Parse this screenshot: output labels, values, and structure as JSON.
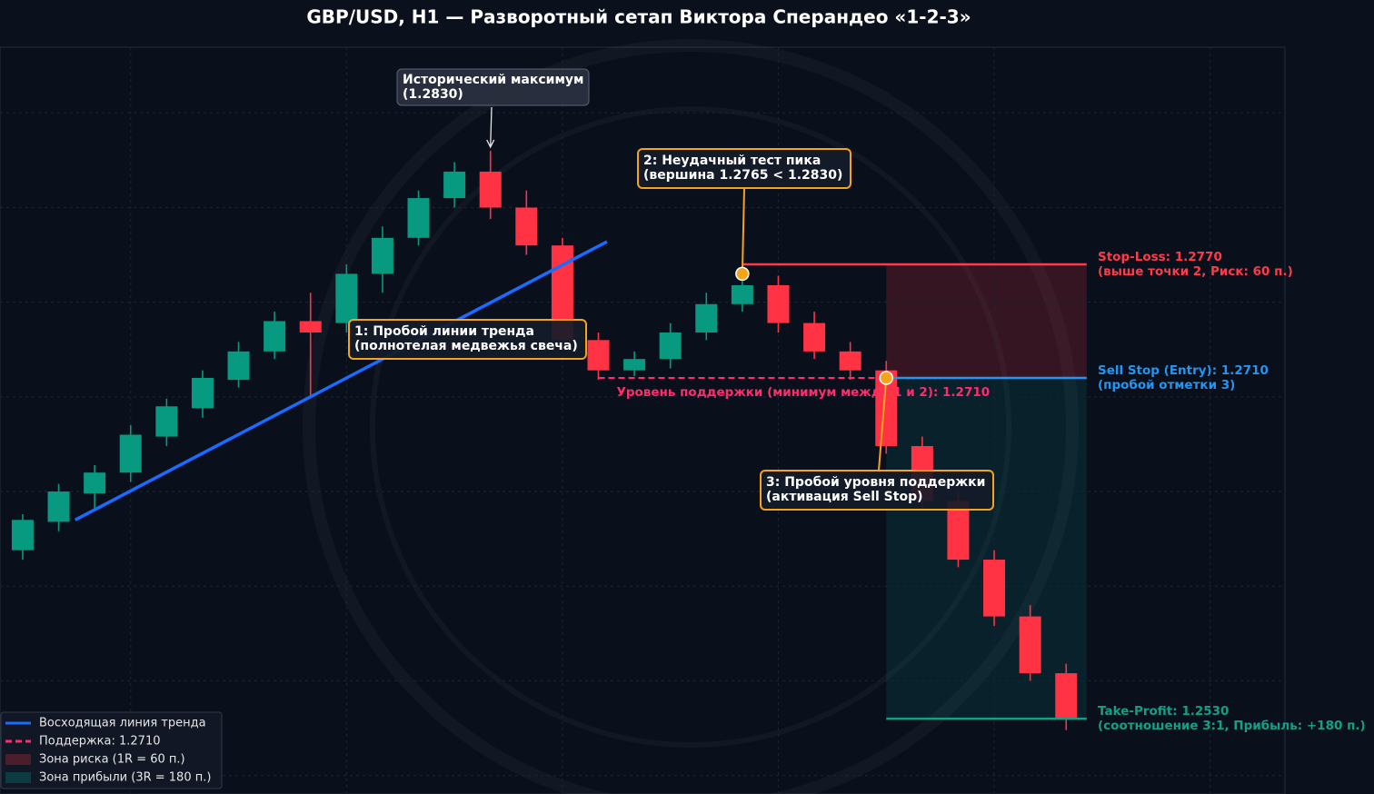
{
  "chart_data": {
    "type": "candlestick",
    "title": "GBP/USD, H1 — Разворотный сетап Виктора Сперандео «1-2-3»",
    "xlim": [
      -0.63,
      35.08
    ],
    "ylim": [
      1.24902,
      1.28847
    ],
    "xticks": [
      3,
      9,
      15,
      21,
      27,
      33
    ],
    "yticks": [
      1.25,
      1.255,
      1.26,
      1.265,
      1.27,
      1.275,
      1.28,
      1.285
    ],
    "grid": true,
    "tick_labels": false,
    "legend": "lower left",
    "up_color": "#089981",
    "down_color": "#ff3344",
    "open": [
      1.2619,
      1.2634,
      1.2649,
      1.266,
      1.2679,
      1.2694,
      1.2709,
      1.2724,
      1.274,
      1.2739,
      1.2765,
      1.2784,
      1.2805,
      1.2819,
      1.28,
      1.278,
      1.273,
      1.2714,
      1.272,
      1.2734,
      1.2749,
      1.2759,
      1.2739,
      1.2724,
      1.2714,
      1.2674,
      1.2645,
      1.2614,
      1.2584,
      1.2554
    ],
    "high": [
      1.2638,
      1.2654,
      1.2664,
      1.2685,
      1.2699,
      1.2714,
      1.2729,
      1.2745,
      1.2755,
      1.277,
      1.279,
      1.2809,
      1.2824,
      1.283,
      1.2809,
      1.2784,
      1.2734,
      1.2724,
      1.2739,
      1.2755,
      1.2765,
      1.2764,
      1.2745,
      1.2729,
      1.2719,
      1.2679,
      1.265,
      1.2619,
      1.259,
      1.2559
    ],
    "low": [
      1.2614,
      1.2629,
      1.2641,
      1.2655,
      1.2674,
      1.2689,
      1.2705,
      1.272,
      1.27,
      1.2734,
      1.2755,
      1.278,
      1.28,
      1.2794,
      1.2775,
      1.2725,
      1.2709,
      1.2711,
      1.2715,
      1.273,
      1.2745,
      1.2734,
      1.272,
      1.2709,
      1.267,
      1.264,
      1.261,
      1.2579,
      1.255,
      1.2524
    ],
    "close": [
      1.2635,
      1.265,
      1.266,
      1.268,
      1.2695,
      1.271,
      1.2724,
      1.274,
      1.2734,
      1.2765,
      1.2784,
      1.2805,
      1.2819,
      1.28,
      1.278,
      1.273,
      1.2714,
      1.272,
      1.2734,
      1.2749,
      1.2759,
      1.2739,
      1.2724,
      1.2714,
      1.2674,
      1.2645,
      1.2614,
      1.2584,
      1.2554,
      1.253
    ],
    "trendline": {
      "name": "Восходящая линия тренда",
      "color": "#1a6bff",
      "x": [
        1.46,
        16.24
      ],
      "y": [
        1.2635,
        1.2782
      ]
    },
    "zones": [
      {
        "name": "Зона риска (1R = 60 п.)",
        "from": 1.271,
        "to": 1.277,
        "x": [
          24,
          29.57
        ],
        "color": "#ff3344"
      },
      {
        "name": "Зона прибыли (3R = 180 п.)",
        "from": 1.253,
        "to": 1.271,
        "x": [
          24,
          29.57
        ],
        "color": "#00a896"
      }
    ],
    "levels": [
      {
        "name": "Поддержка: 1.2710",
        "label": [
          "Уровень поддержки (минимум между 1 и 2): 1.2710"
        ],
        "value": 1.271,
        "x": [
          16,
          24
        ],
        "color": "#ff2d6b",
        "dash": true
      },
      {
        "label": [
          "Stop-Loss: 1.2770",
          "(выше точки 2, Риск: 60 п.)"
        ],
        "value": 1.277,
        "x": [
          20,
          29.57
        ],
        "color": "#ff3b4a",
        "dash": false
      },
      {
        "label": [
          "Sell Stop (Entry): 1.2710",
          "(пробой отметки 3)"
        ],
        "value": 1.271,
        "x": [
          24,
          29.57
        ],
        "color": "#2196f3",
        "dash": false
      },
      {
        "label": [
          "Take-Profit: 1.2530",
          "(соотношение 3:1, Прибыль: +180 п.)"
        ],
        "value": 1.253,
        "x": [
          24,
          29.57
        ],
        "color": "#13a085",
        "dash": false
      }
    ],
    "annotations": [
      {
        "lines": [
          "Исторический максимум",
          "(1.2830)"
        ],
        "x": 13,
        "y": 1.283,
        "style": "plain",
        "marker": false
      },
      {
        "lines": [
          "1: Пробой линии тренда",
          "(полнотелая медвежья свеча)"
        ],
        "style": "step"
      },
      {
        "lines": [
          "2: Неудачный тест пика",
          "(вершина 1.2765 < 1.2830)"
        ],
        "x": 20,
        "y": 1.2765,
        "style": "step",
        "marker": true
      },
      {
        "lines": [
          "3: Пробой уровня поддержки",
          "(активация Sell Stop)"
        ],
        "x": 24,
        "y": 1.271,
        "style": "step",
        "marker": true
      }
    ]
  }
}
